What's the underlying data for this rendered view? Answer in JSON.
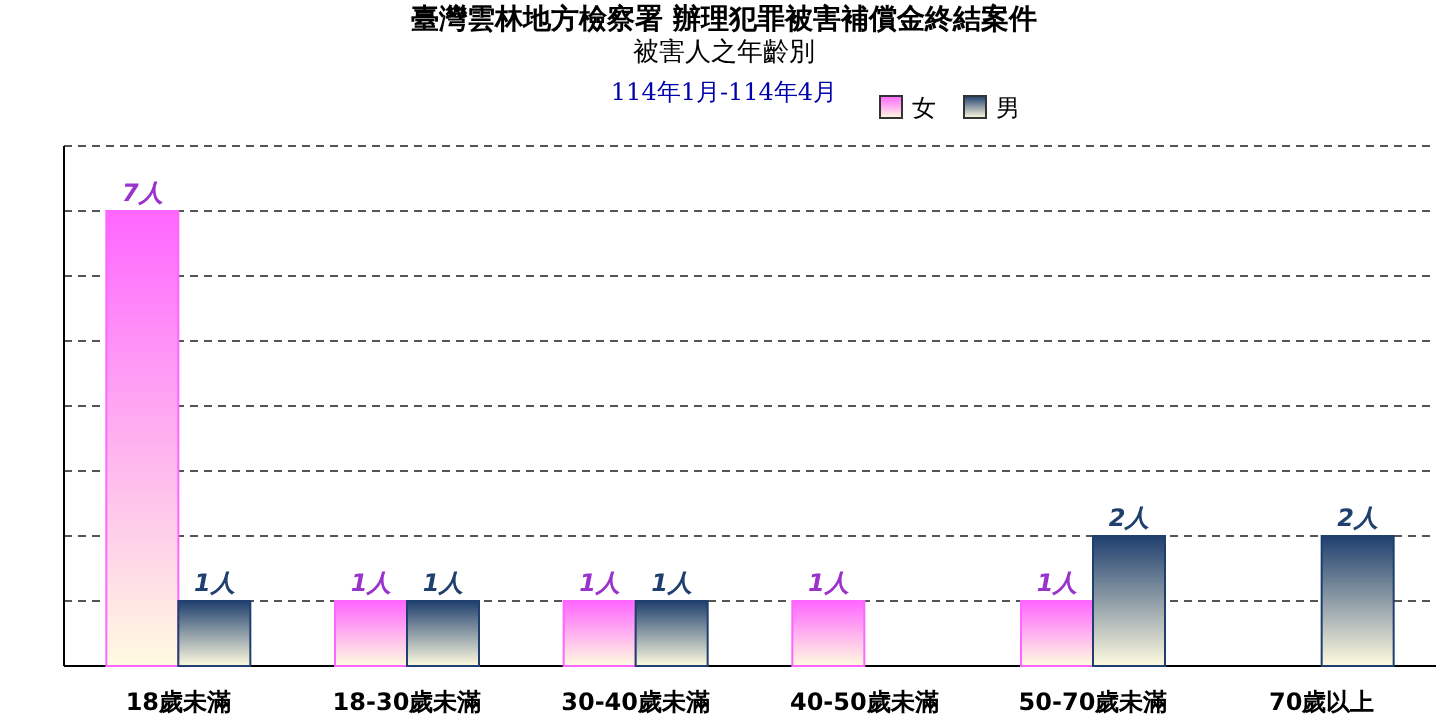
{
  "chart_data": {
    "type": "bar",
    "title": "臺灣雲林地方檢察署  辦理犯罪被害補償金終結案件",
    "subtitle": "被害人之年齡別",
    "annotations": [
      "114年1月-114年4月"
    ],
    "categories": [
      "18歲未滿",
      "18-30歲未滿",
      "30-40歲未滿",
      "40-50歲未滿",
      "50-70歲未滿",
      "70歲以上"
    ],
    "series": [
      {
        "name": "女",
        "color": "#ff66ff",
        "values": [
          7,
          1,
          1,
          1,
          1,
          null
        ],
        "value_labels": [
          "7人",
          "1人",
          "1人",
          "1人",
          "1人",
          null
        ]
      },
      {
        "name": "男",
        "color": "#1f3f6e",
        "values": [
          1,
          1,
          1,
          null,
          2,
          2
        ],
        "value_labels": [
          "1人",
          "1人",
          "1人",
          null,
          "2人",
          "2人"
        ]
      }
    ],
    "ylim": [
      0,
      8
    ],
    "yticks": [
      {
        "value": 1,
        "label": null
      },
      {
        "value": 2,
        "label": null
      },
      {
        "value": 3,
        "label": null
      },
      {
        "value": 4,
        "label": null
      },
      {
        "value": 5,
        "label": null
      },
      {
        "value": 6,
        "label": null
      },
      {
        "value": 7,
        "label": null
      },
      {
        "value": 8,
        "label": null
      }
    ],
    "grid": "y",
    "legend": "top",
    "tick_labels": "x"
  }
}
